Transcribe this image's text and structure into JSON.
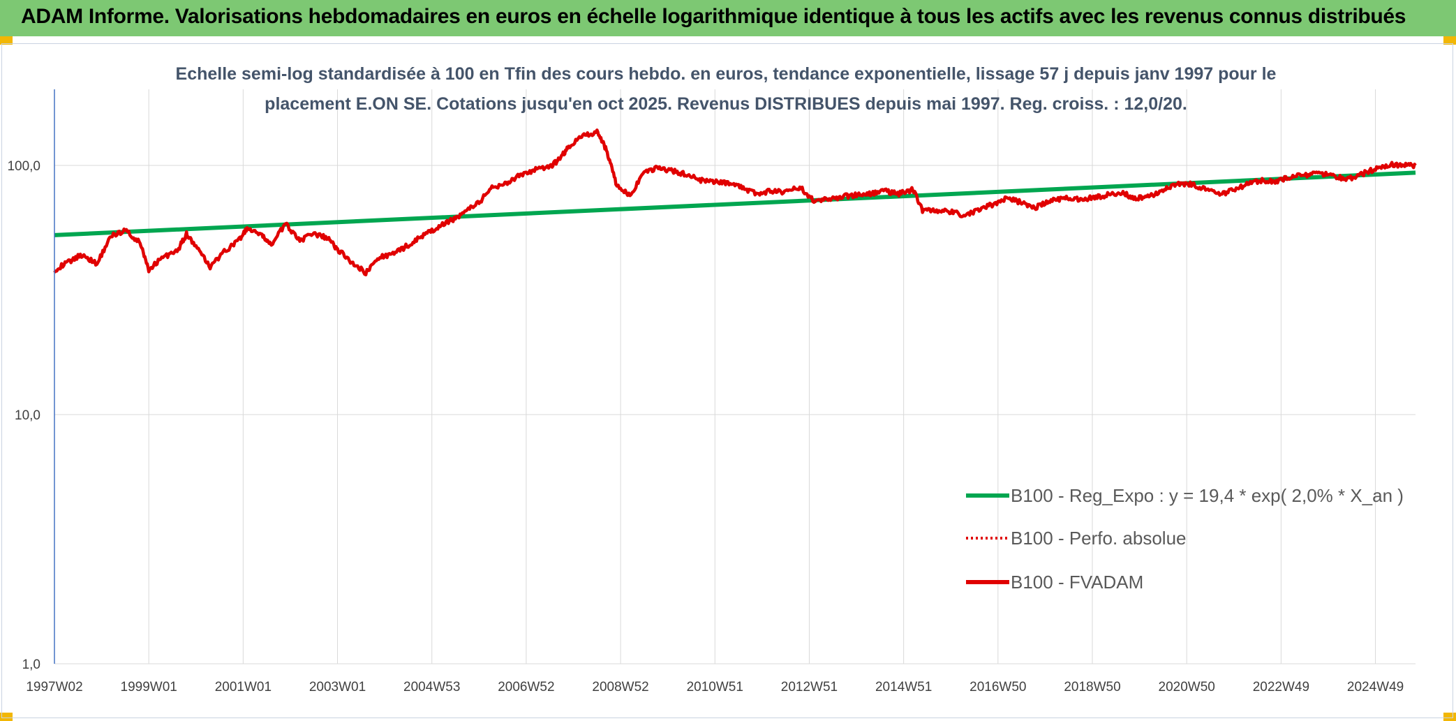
{
  "banner": {
    "title": "ADAM Informe. Valorisations hebdomadaires en euros en échelle logarithmique identique à tous les actifs avec les revenus connus distribués",
    "background": "#7dc873",
    "corner_color": "#f2b705"
  },
  "chart_data": {
    "type": "line",
    "subtitle_lines": [
      "Echelle semi-log standardisée à 100 en Tfin des cours hebdo. en euros, tendance exponentielle, lissage 57 j depuis janv 1997 pour le",
      "placement E.ON SE. Cotations jusqu'en oct 2025. Revenus DISTRIBUES depuis mai 1997. Reg. croiss. : 12,0/20."
    ],
    "y_scale": "log",
    "ylim": [
      1,
      200
    ],
    "y_ticks": [
      {
        "value": 1,
        "label": "1,0"
      },
      {
        "value": 10,
        "label": "10,0"
      },
      {
        "value": 100,
        "label": "100,0"
      }
    ],
    "x_range": [
      1997.0,
      2025.85
    ],
    "x_ticks": [
      {
        "x": 1997.0,
        "label": "1997W02"
      },
      {
        "x": 1999.0,
        "label": "1999W01"
      },
      {
        "x": 2001.0,
        "label": "2001W01"
      },
      {
        "x": 2003.0,
        "label": "2003W01"
      },
      {
        "x": 2005.0,
        "label": "2004W53"
      },
      {
        "x": 2007.0,
        "label": "2006W52"
      },
      {
        "x": 2009.0,
        "label": "2008W52"
      },
      {
        "x": 2011.0,
        "label": "2010W51"
      },
      {
        "x": 2013.0,
        "label": "2012W51"
      },
      {
        "x": 2015.0,
        "label": "2014W51"
      },
      {
        "x": 2017.0,
        "label": "2016W50"
      },
      {
        "x": 2019.0,
        "label": "2018W50"
      },
      {
        "x": 2021.0,
        "label": "2020W50"
      },
      {
        "x": 2023.0,
        "label": "2022W49"
      },
      {
        "x": 2025.0,
        "label": "2024W49"
      }
    ],
    "grid": true,
    "legend_position": "bottom-right",
    "series": [
      {
        "name": "B100 - Reg_Expo : y = 19,4 * exp( 2,0% *  X_an )",
        "color": "#00a650",
        "style": "solid",
        "x": [
          1997.0,
          2025.85
        ],
        "y": [
          52.5,
          93.5
        ]
      },
      {
        "name": "B100 - Perfo. absolue",
        "color": "#e00000",
        "style": "dotted",
        "x": [],
        "y": []
      },
      {
        "name": "B100 - FVADAM",
        "color": "#e00000",
        "style": "solid",
        "x": [
          1997.0,
          1997.3,
          1997.6,
          1997.9,
          1998.2,
          1998.5,
          1998.8,
          1999.0,
          1999.3,
          1999.6,
          1999.8,
          2000.0,
          2000.3,
          2000.6,
          2000.9,
          2001.1,
          2001.4,
          2001.6,
          2001.9,
          2002.2,
          2002.5,
          2002.8,
          2003.0,
          2003.3,
          2003.6,
          2003.9,
          2004.2,
          2004.5,
          2004.8,
          2005.1,
          2005.4,
          2005.7,
          2006.0,
          2006.3,
          2006.6,
          2006.9,
          2007.2,
          2007.5,
          2007.7,
          2007.9,
          2008.2,
          2008.5,
          2008.7,
          2008.9,
          2009.2,
          2009.5,
          2009.8,
          2010.1,
          2010.4,
          2010.7,
          2011.0,
          2011.3,
          2011.6,
          2011.9,
          2012.2,
          2012.5,
          2012.8,
          2013.1,
          2013.4,
          2013.7,
          2014.0,
          2014.3,
          2014.6,
          2014.9,
          2015.2,
          2015.4,
          2015.7,
          2016.0,
          2016.3,
          2016.6,
          2016.9,
          2017.2,
          2017.5,
          2017.8,
          2018.1,
          2018.4,
          2018.7,
          2019.0,
          2019.3,
          2019.6,
          2019.9,
          2020.2,
          2020.5,
          2020.8,
          2021.1,
          2021.4,
          2021.7,
          2022.0,
          2022.3,
          2022.6,
          2022.9,
          2023.2,
          2023.5,
          2023.8,
          2024.1,
          2024.4,
          2024.7,
          2025.0,
          2025.3,
          2025.6,
          2025.85
        ],
        "y": [
          38,
          41,
          44,
          40,
          52,
          55,
          49,
          38,
          43,
          45,
          53,
          47,
          39,
          45,
          50,
          56,
          52,
          48,
          58,
          50,
          53,
          51,
          46,
          41,
          37,
          43,
          44,
          48,
          52,
          56,
          60,
          65,
          71,
          82,
          85,
          92,
          96,
          98,
          106,
          118,
          132,
          136,
          115,
          85,
          75,
          93,
          98,
          95,
          92,
          87,
          86,
          85,
          81,
          77,
          79,
          78,
          82,
          72,
          73,
          75,
          76,
          77,
          79,
          77,
          80,
          66,
          66,
          65,
          63,
          66,
          70,
          74,
          71,
          68,
          72,
          74,
          73,
          74,
          76,
          78,
          74,
          75,
          80,
          85,
          84,
          80,
          76,
          80,
          84,
          87,
          86,
          90,
          91,
          93,
          91,
          88,
          92,
          97,
          101,
          100,
          100
        ]
      }
    ]
  }
}
